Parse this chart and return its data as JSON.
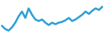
{
  "x": [
    0,
    1,
    2,
    3,
    4,
    5,
    6,
    7,
    8,
    9,
    10,
    11,
    12,
    13,
    14,
    15,
    16,
    17,
    18,
    19,
    20,
    21,
    22,
    23,
    24,
    25,
    26,
    27,
    28,
    29,
    30
  ],
  "y": [
    78,
    74,
    72,
    76,
    82,
    90,
    96,
    88,
    100,
    92,
    86,
    84,
    86,
    82,
    79,
    82,
    80,
    82,
    83,
    85,
    88,
    84,
    86,
    89,
    92,
    96,
    93,
    97,
    100,
    98,
    102
  ],
  "line_color": "#2b9fd4",
  "linewidth": 1.6,
  "background_color": "#ffffff",
  "ylim": [
    65,
    110
  ],
  "xlim": [
    -0.3,
    30.3
  ]
}
